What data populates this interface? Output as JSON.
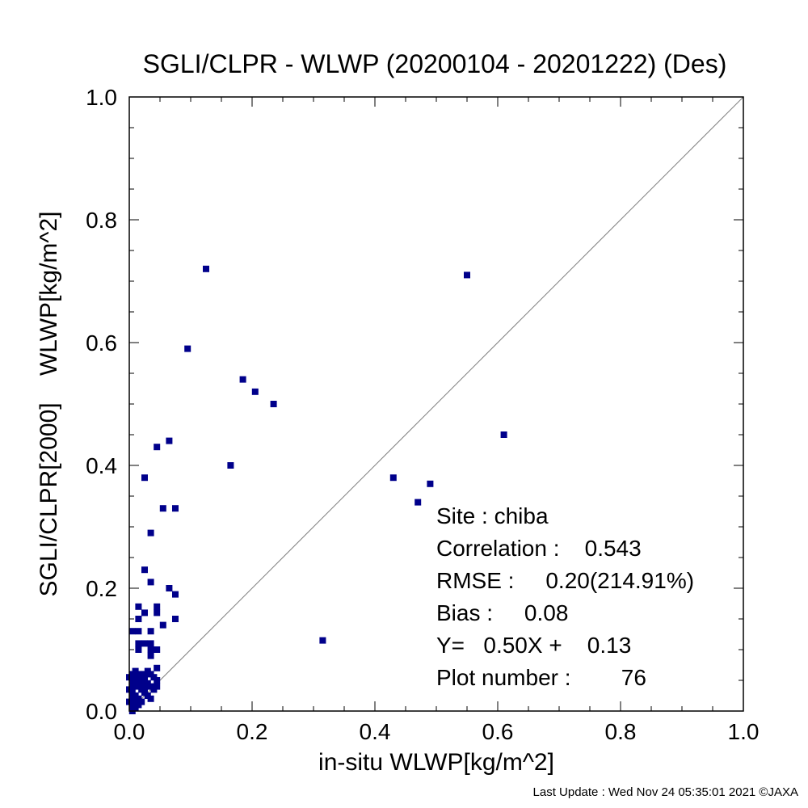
{
  "chart_data": {
    "type": "scatter",
    "title": "SGLI/CLPR - WLWP (20200104 - 20201222) (Des)",
    "xlabel": "in-situ WLWP[kg/m^2]",
    "ylabel": "SGLI/CLPR[2000]    WLWP[kg/m^2]",
    "xlim": [
      0.0,
      1.0
    ],
    "ylim": [
      0.0,
      1.0
    ],
    "xticks": [
      "0.0",
      "0.2",
      "0.4",
      "0.6",
      "0.8",
      "1.0"
    ],
    "yticks": [
      "0.0",
      "0.2",
      "0.4",
      "0.6",
      "0.8",
      "1.0"
    ],
    "reference_line": "1:1",
    "marker_color": "#00008b",
    "line_color": "#808080",
    "grid": false,
    "points": [
      [
        0.125,
        0.72
      ],
      [
        0.55,
        0.71
      ],
      [
        0.095,
        0.59
      ],
      [
        0.185,
        0.54
      ],
      [
        0.205,
        0.52
      ],
      [
        0.235,
        0.5
      ],
      [
        0.61,
        0.45
      ],
      [
        0.065,
        0.44
      ],
      [
        0.045,
        0.43
      ],
      [
        0.165,
        0.4
      ],
      [
        0.025,
        0.38
      ],
      [
        0.43,
        0.38
      ],
      [
        0.49,
        0.37
      ],
      [
        0.47,
        0.34
      ],
      [
        0.055,
        0.33
      ],
      [
        0.075,
        0.33
      ],
      [
        0.035,
        0.29
      ],
      [
        0.315,
        0.115
      ],
      [
        0.025,
        0.23
      ],
      [
        0.035,
        0.21
      ],
      [
        0.065,
        0.2
      ],
      [
        0.075,
        0.19
      ],
      [
        0.015,
        0.17
      ],
      [
        0.045,
        0.17
      ],
      [
        0.025,
        0.16
      ],
      [
        0.045,
        0.16
      ],
      [
        0.015,
        0.15
      ],
      [
        0.075,
        0.15
      ],
      [
        0.055,
        0.14
      ],
      [
        0.005,
        0.13
      ],
      [
        0.015,
        0.13
      ],
      [
        0.035,
        0.13
      ],
      [
        0.015,
        0.11
      ],
      [
        0.025,
        0.11
      ],
      [
        0.035,
        0.11
      ],
      [
        0.015,
        0.1
      ],
      [
        0.035,
        0.1
      ],
      [
        0.045,
        0.1
      ],
      [
        0.035,
        0.09
      ],
      [
        0.045,
        0.07
      ],
      [
        0.005,
        0.06
      ],
      [
        0.015,
        0.06
      ],
      [
        0.025,
        0.06
      ],
      [
        0.035,
        0.06
      ],
      [
        0.005,
        0.05
      ],
      [
        0.025,
        0.05
      ],
      [
        0.045,
        0.05
      ],
      [
        0.005,
        0.04
      ],
      [
        0.015,
        0.04
      ],
      [
        0.035,
        0.04
      ],
      [
        0.045,
        0.04
      ],
      [
        0.005,
        0.03
      ],
      [
        0.025,
        0.03
      ],
      [
        0.005,
        0.02
      ],
      [
        0.015,
        0.02
      ],
      [
        0.035,
        0.02
      ],
      [
        0.005,
        0.01
      ],
      [
        0.015,
        0.01
      ],
      [
        0.005,
        0.0
      ],
      [
        0.01,
        0.045
      ],
      [
        0.02,
        0.035
      ],
      [
        0.03,
        0.045
      ],
      [
        0.01,
        0.025
      ],
      [
        0.02,
        0.015
      ],
      [
        0.03,
        0.025
      ],
      [
        0.0,
        0.055
      ],
      [
        0.0,
        0.035
      ],
      [
        0.0,
        0.015
      ],
      [
        0.01,
        0.005
      ],
      [
        0.04,
        0.035
      ],
      [
        0.02,
        0.055
      ],
      [
        0.03,
        0.065
      ],
      [
        0.04,
        0.055
      ],
      [
        0.01,
        0.065
      ],
      [
        0.025,
        0.04
      ],
      [
        0.015,
        0.05
      ]
    ]
  },
  "stats": {
    "site": "Site : chiba",
    "correlation": "Correlation :    0.543",
    "rmse": "RMSE :     0.20(214.91%)",
    "bias": "Bias :     0.08",
    "regression": "Y=   0.50X +    0.13",
    "plot_number": "Plot number :        76"
  },
  "footer": "Last Update : Wed Nov 24 05:35:01 2021  ©JAXA"
}
